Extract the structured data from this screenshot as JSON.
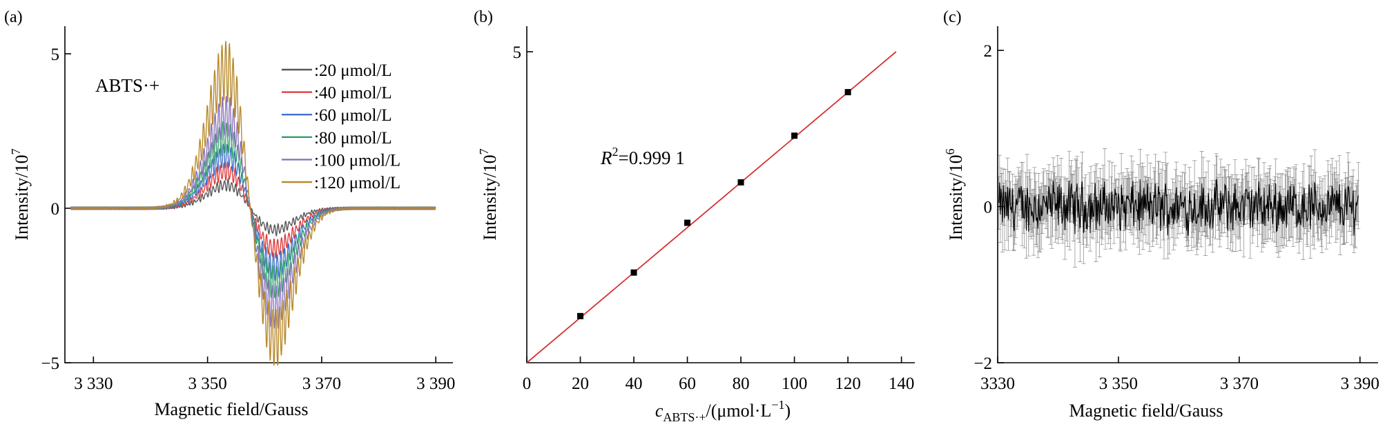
{
  "chart_data": [
    {
      "type": "line",
      "panel": "(a)",
      "annotation": "ABTS·+",
      "xlabel": "Magnetic field/Gauss",
      "ylabel": "Intensity/10^7",
      "xlim": [
        3325,
        3393
      ],
      "ylim": [
        -5,
        5
      ],
      "xticks": [
        3330,
        3350,
        3370,
        3390
      ],
      "xtick_labels": [
        "3 330",
        "3 350",
        "3 370",
        "3 390"
      ],
      "yticks": [
        -5,
        0,
        5
      ],
      "ytick_labels": [
        "−5",
        "0",
        "5"
      ],
      "series": [
        {
          "name": ":20 μmol/L",
          "color": "#555555",
          "peak": 0.75,
          "trough": -0.7
        },
        {
          "name": ":40 μmol/L",
          "color": "#e03c3c",
          "peak": 1.2,
          "trough": -1.3
        },
        {
          "name": ":60 μmol/L",
          "color": "#3f6fc8",
          "peak": 1.7,
          "trough": -1.9
        },
        {
          "name": ":80 μmol/L",
          "color": "#2f9e6a",
          "peak": 2.3,
          "trough": -2.4
        },
        {
          "name": ":100 μmol/L",
          "color": "#8a72b8",
          "peak": 3.0,
          "trough": -3.2
        },
        {
          "name": ":120 μmol/L",
          "color": "#b8892c",
          "peak": 4.45,
          "trough": -4.2
        }
      ]
    },
    {
      "type": "scatter",
      "panel": "(b)",
      "annotation_r": "R",
      "annotation_sup": "2",
      "annotation_val": "=0.999 1",
      "xlabel_c": "c",
      "xlabel_sub": "ABTS·+",
      "xlabel_rest": "/(μmol·L",
      "xlabel_sup": "−1",
      "xlabel_close": ")",
      "ylabel": "Intensity/10^7",
      "xlim": [
        0,
        145
      ],
      "ylim": [
        0,
        5.3
      ],
      "xticks": [
        0,
        20,
        40,
        60,
        80,
        100,
        120,
        140
      ],
      "xtick_labels": [
        "0",
        "20",
        "40",
        "60",
        "80",
        "100",
        "120",
        "140"
      ],
      "yticks": [
        5
      ],
      "ytick_labels": [
        "5"
      ],
      "x": [
        20,
        40,
        60,
        80,
        100,
        120
      ],
      "y": [
        0.75,
        1.45,
        2.25,
        2.9,
        3.65,
        4.35
      ],
      "fit": {
        "x": [
          0,
          138
        ],
        "y": [
          0,
          5.0
        ],
        "color": "#d43030"
      },
      "point_color": "#000000"
    },
    {
      "type": "line",
      "panel": "(c)",
      "xlabel": "Magnetic field/Gauss",
      "ylabel": "Intensity/10^6",
      "xlim": [
        3330,
        3393
      ],
      "ylim": [
        -2,
        2
      ],
      "xticks": [
        3330,
        3350,
        3370,
        3390
      ],
      "xtick_labels": [
        "3330",
        "3 350",
        "3 370",
        "3 390"
      ],
      "yticks": [
        -2,
        0,
        2
      ],
      "ytick_labels": [
        "−2",
        "0",
        "2"
      ],
      "series": [
        {
          "name": "",
          "color": "#000000",
          "mean": 0.0,
          "noise": 0.35
        }
      ]
    }
  ]
}
